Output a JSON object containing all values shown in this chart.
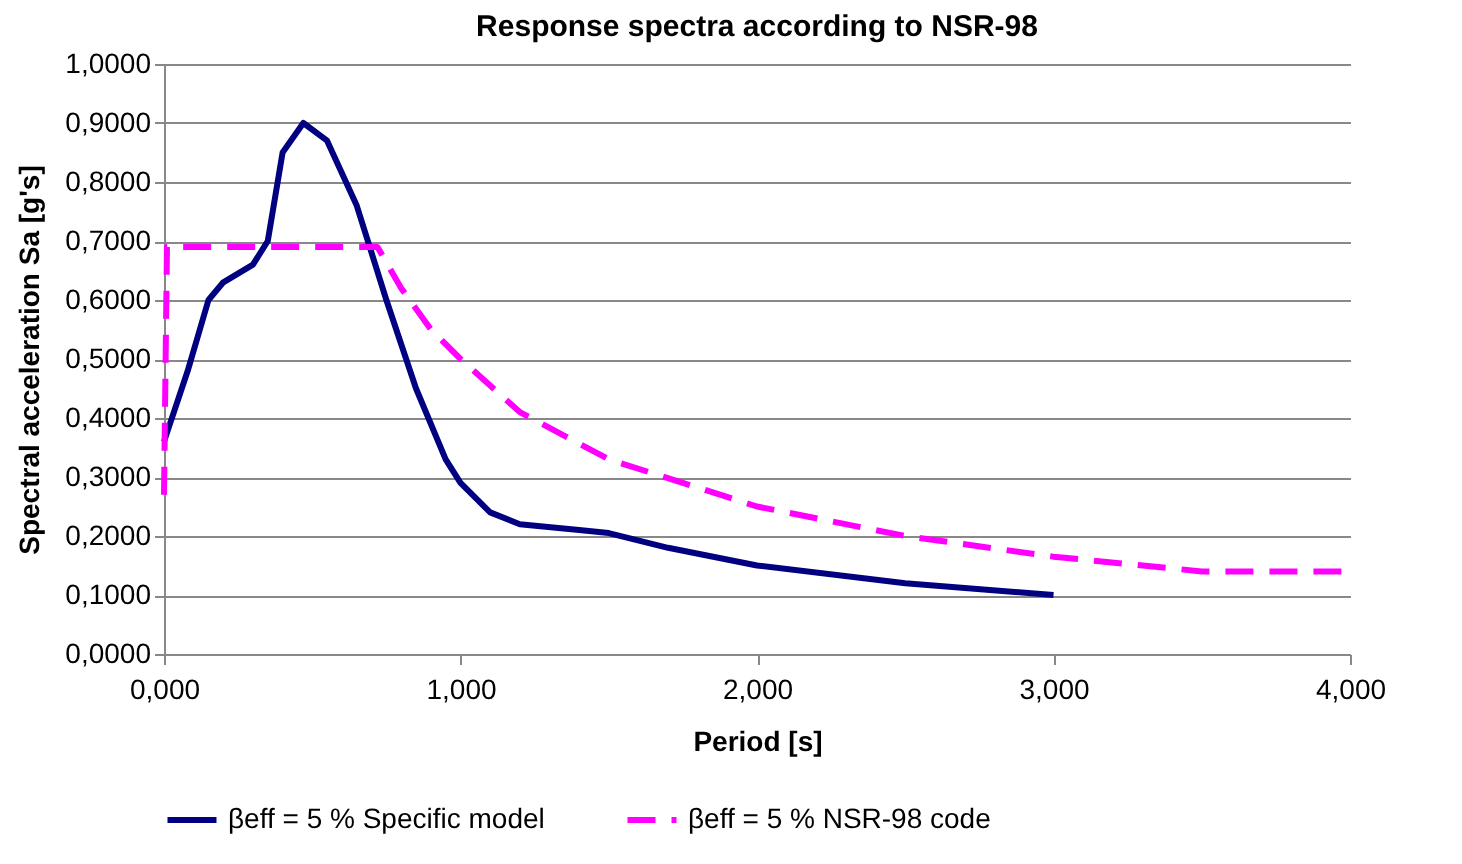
{
  "chart_data": {
    "type": "line",
    "title": "Response spectra according to NSR-98",
    "xlabel": "Period  [s]",
    "ylabel": "Spectral acceleration Sa [g's]",
    "xlim": [
      0,
      4
    ],
    "xticks": [
      {
        "value": 0,
        "label": "0,000"
      },
      {
        "value": 1,
        "label": "1,000"
      },
      {
        "value": 2,
        "label": "2,000"
      },
      {
        "value": 3,
        "label": "3,000"
      },
      {
        "value": 4,
        "label": "4,000"
      }
    ],
    "ylim": [
      0,
      1
    ],
    "yticks": [
      {
        "value": 0,
        "label": "0,0000"
      },
      {
        "value": 0.1,
        "label": "0,1000"
      },
      {
        "value": 0.2,
        "label": "0,2000"
      },
      {
        "value": 0.3,
        "label": "0,3000"
      },
      {
        "value": 0.4,
        "label": "0,4000"
      },
      {
        "value": 0.5,
        "label": "0,5000"
      },
      {
        "value": 0.6,
        "label": "0,6000"
      },
      {
        "value": 0.7,
        "label": "0,7000"
      },
      {
        "value": 0.8,
        "label": "0,8000"
      },
      {
        "value": 0.9,
        "label": "0,9000"
      },
      {
        "value": 1,
        "label": "1,0000"
      }
    ],
    "grid": "y",
    "legend": "bottom",
    "series": [
      {
        "name": "βeff = 5 %  Specific model",
        "color": "#000080",
        "line_style": "solid",
        "x": [
          0,
          0.08,
          0.15,
          0.2,
          0.3,
          0.35,
          0.4,
          0.47,
          0.55,
          0.65,
          0.75,
          0.85,
          0.95,
          1.0,
          1.1,
          1.2,
          1.4,
          1.5,
          1.7,
          2.0,
          2.5,
          3.0
        ],
        "values": [
          0.36,
          0.48,
          0.6,
          0.63,
          0.66,
          0.7,
          0.85,
          0.9,
          0.87,
          0.76,
          0.6,
          0.45,
          0.33,
          0.29,
          0.24,
          0.22,
          0.21,
          0.205,
          0.18,
          0.15,
          0.12,
          0.1
        ]
      },
      {
        "name": "βeff = 5 %  NSR-98 code",
        "color": "#ff00ff",
        "line_style": "dashed",
        "x": [
          0,
          0.01,
          0.72,
          0.8,
          0.9,
          1.0,
          1.2,
          1.5,
          2.0,
          2.5,
          3.0,
          3.5,
          4.0
        ],
        "values": [
          0.27,
          0.69,
          0.69,
          0.62,
          0.55,
          0.5,
          0.41,
          0.33,
          0.25,
          0.2,
          0.165,
          0.14,
          0.14
        ]
      }
    ]
  }
}
